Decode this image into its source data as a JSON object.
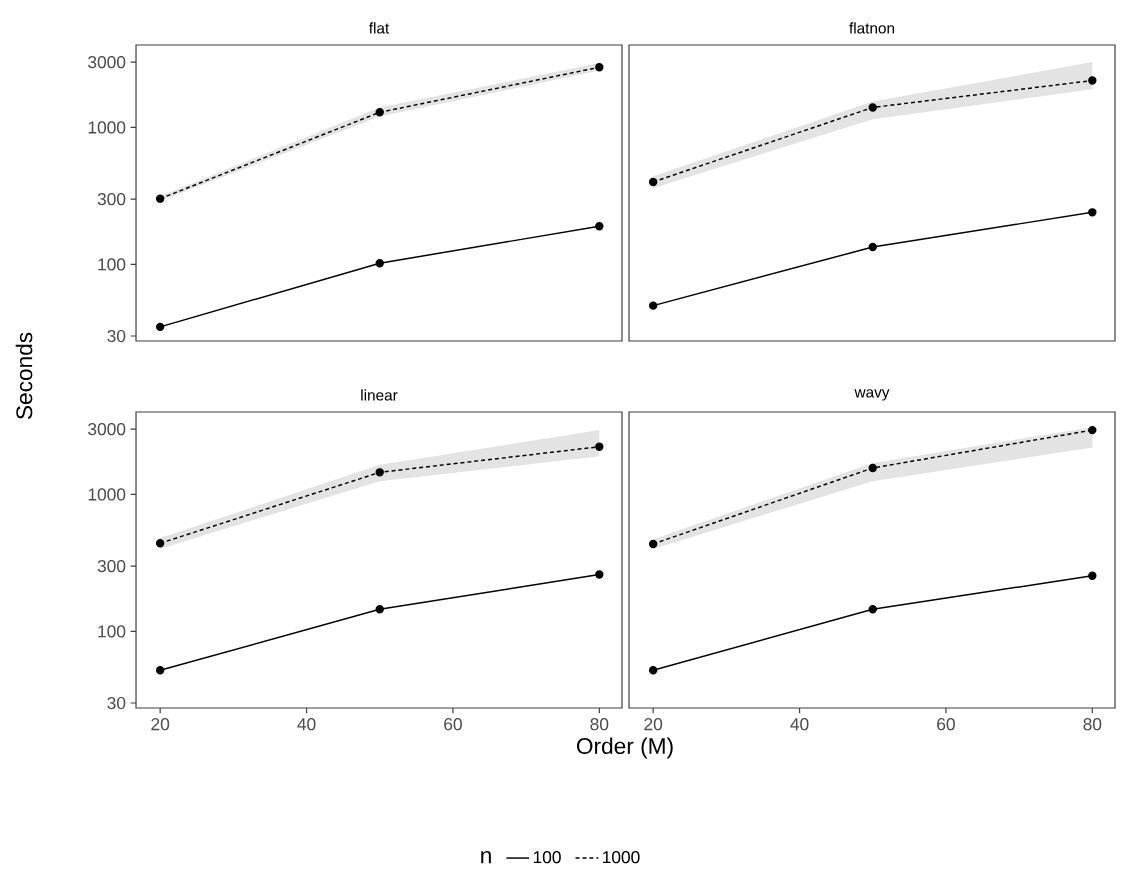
{
  "chart_data": [
    {
      "type": "line",
      "title": "flat",
      "ylabel": "Seconds",
      "x": [
        20,
        50,
        80
      ],
      "xlim": [
        16.7,
        83.1
      ],
      "ylim": [
        27.6,
        4000
      ],
      "log": "y",
      "marker": "circle",
      "tick_labels": "y",
      "xticks": [
        20,
        40,
        60,
        80
      ],
      "yticks": [
        30,
        100,
        300,
        1000,
        3000
      ],
      "series": [
        {
          "color": "#000000",
          "line_style": "solid",
          "values": [
            35,
            102,
            190
          ]
        },
        {
          "color": "#000000",
          "line_style": "dashed",
          "values": [
            302,
            1290,
            2750
          ],
          "lower": [
            290,
            1200,
            2600
          ],
          "upper": [
            315,
            1400,
            2950
          ]
        }
      ]
    },
    {
      "type": "line",
      "title": "flatnon",
      "x": [
        20,
        50,
        80
      ],
      "xlim": [
        16.7,
        83.1
      ],
      "ylim": [
        27.6,
        4000
      ],
      "log": "y",
      "marker": "circle",
      "tick_labels": false,
      "xticks": [
        20,
        40,
        60,
        80
      ],
      "yticks": [
        30,
        100,
        300,
        1000,
        3000
      ],
      "series": [
        {
          "color": "#000000",
          "line_style": "solid",
          "values": [
            50,
            134,
            240
          ]
        },
        {
          "color": "#000000",
          "line_style": "dashed",
          "values": [
            400,
            1400,
            2200
          ],
          "lower": [
            360,
            1150,
            1900
          ],
          "upper": [
            440,
            1550,
            3000
          ]
        }
      ]
    },
    {
      "type": "line",
      "title": "linear",
      "xlabel": "Order (M)",
      "x": [
        20,
        50,
        80
      ],
      "xlim": [
        16.7,
        83.1
      ],
      "ylim": [
        27.6,
        4000
      ],
      "log": "y",
      "marker": "circle",
      "xticks": [
        20,
        40,
        60,
        80
      ],
      "yticks": [
        30,
        100,
        300,
        1000,
        3000
      ],
      "series": [
        {
          "color": "#000000",
          "line_style": "solid",
          "values": [
            52,
            145,
            260
          ]
        },
        {
          "color": "#000000",
          "line_style": "dashed",
          "values": [
            440,
            1450,
            2230
          ],
          "lower": [
            400,
            1250,
            1900
          ],
          "upper": [
            480,
            1650,
            2950
          ]
        }
      ]
    },
    {
      "type": "line",
      "title": "wavy",
      "legend_title": "n",
      "legend": "bottom",
      "x": [
        20,
        50,
        80
      ],
      "xlim": [
        16.7,
        83.1
      ],
      "ylim": [
        27.6,
        4000
      ],
      "log": "y",
      "marker": "circle",
      "tick_labels": "x",
      "xticks": [
        20,
        40,
        60,
        80
      ],
      "yticks": [
        30,
        100,
        300,
        1000,
        3000
      ],
      "series": [
        {
          "name": "100",
          "color": "#000000",
          "line_style": "solid",
          "values": [
            52,
            145,
            255
          ]
        },
        {
          "name": "1000",
          "color": "#000000",
          "line_style": "dashed",
          "values": [
            435,
            1560,
            2950
          ],
          "lower": [
            400,
            1250,
            2200
          ],
          "upper": [
            470,
            1700,
            3100
          ]
        }
      ]
    }
  ]
}
